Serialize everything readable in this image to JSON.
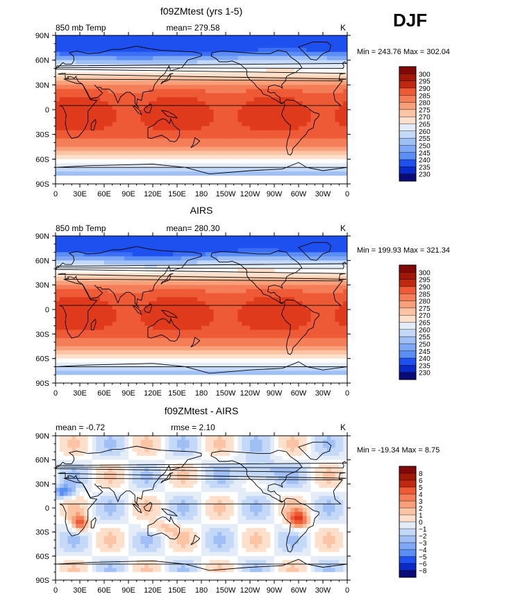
{
  "season_label": "DJF",
  "ramp_colors": [
    "#0a0a78",
    "#0a2ac8",
    "#1e50f0",
    "#3c6ef5",
    "#5a8ef5",
    "#7ea8f5",
    "#a0c0f5",
    "#c4d8f8",
    "#e4ecf8",
    "#ffffff",
    "#fde0cc",
    "#fbc4a4",
    "#f8a07a",
    "#f47e58",
    "#ef5a36",
    "#e03a1c",
    "#c02810",
    "#a01808",
    "#800808"
  ],
  "land_outline_color": "#000000",
  "missing_color": "#ffffff",
  "chart_data": [
    {
      "type": "heatmap",
      "panel_title": "f09ZMtest (yrs 1-5)",
      "left_label": "850 mb Temp",
      "center_label": "mean= 279.58",
      "units": "K",
      "min_max": "Min = 243.76 Max = 302.04",
      "x_ticks": [
        "0",
        "30E",
        "60E",
        "90E",
        "120E",
        "150E",
        "180",
        "150W",
        "120W",
        "90W",
        "60W",
        "30W",
        "0"
      ],
      "y_ticks": [
        "90N",
        "60N",
        "30N",
        "0",
        "30S",
        "60S",
        "90S"
      ],
      "colorbar_labels": [
        "300",
        "295",
        "290",
        "285",
        "280",
        "275",
        "270",
        "265",
        "260",
        "255",
        "250",
        "245",
        "240",
        "235",
        "230"
      ],
      "levels": [
        230,
        235,
        240,
        245,
        250,
        255,
        260,
        265,
        270,
        275,
        280,
        285,
        290,
        295,
        300
      ]
    },
    {
      "type": "heatmap",
      "panel_title": "AIRS",
      "left_label": "850 mb Temp",
      "center_label": "mean= 280.30",
      "units": "K",
      "min_max": "Min = 199.93 Max = 321.34",
      "x_ticks": [
        "0",
        "30E",
        "60E",
        "90E",
        "120E",
        "150E",
        "180",
        "150W",
        "120W",
        "90W",
        "60W",
        "30W",
        "0"
      ],
      "y_ticks": [
        "90N",
        "60N",
        "30N",
        "0",
        "30S",
        "60S",
        "90S"
      ],
      "colorbar_labels": [
        "300",
        "295",
        "290",
        "285",
        "280",
        "275",
        "270",
        "265",
        "260",
        "255",
        "250",
        "245",
        "240",
        "235",
        "230"
      ],
      "levels": [
        230,
        235,
        240,
        245,
        250,
        255,
        260,
        265,
        270,
        275,
        280,
        285,
        290,
        295,
        300
      ]
    },
    {
      "type": "heatmap",
      "panel_title": "f09ZMtest - AIRS",
      "left_label": "mean =   -0.72",
      "center_label": "rmse =    2.10",
      "units": "K",
      "min_max": "Min = -19.34 Max =   8.75",
      "x_ticks": [
        "0",
        "30E",
        "60E",
        "90E",
        "120E",
        "150E",
        "180",
        "150W",
        "120W",
        "90W",
        "60W",
        "30W",
        "0"
      ],
      "y_ticks": [
        "90N",
        "60N",
        "30N",
        "0",
        "30S",
        "60S",
        "90S"
      ],
      "colorbar_labels": [
        "8",
        "6",
        "5",
        "4",
        "3",
        "2",
        "1",
        "0",
        "−1",
        "−2",
        "−3",
        "−4",
        "−5",
        "−6",
        "−8"
      ],
      "levels": [
        -8,
        -6,
        -5,
        -4,
        -3,
        -2,
        -1,
        0,
        1,
        2,
        3,
        4,
        5,
        6,
        8
      ]
    }
  ]
}
